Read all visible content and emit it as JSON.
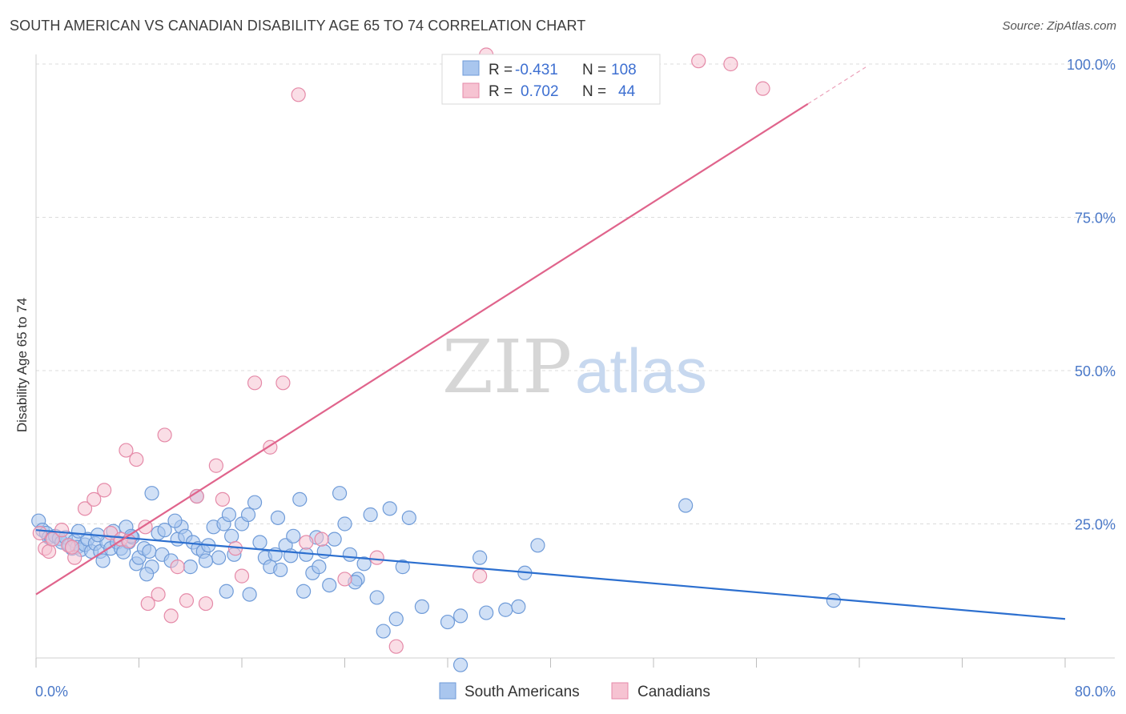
{
  "title": "SOUTH AMERICAN VS CANADIAN DISABILITY AGE 65 TO 74 CORRELATION CHART",
  "source": "Source: ZipAtlas.com",
  "watermark": {
    "zip": "ZIP",
    "atlas": "atlas"
  },
  "legend": {
    "rows": [
      {
        "r_label": "R = ",
        "r_value": "-0.431",
        "n_label": "N = ",
        "n_value": "108"
      },
      {
        "r_label": "R = ",
        "r_value": "0.702",
        "n_label": "N = ",
        "n_value": "44"
      }
    ]
  },
  "colors": {
    "blue_fill": "#a9c6ee",
    "blue_stroke": "#6f9bd8",
    "blue_line": "#2c6fcf",
    "pink_fill": "#f6c3d2",
    "pink_stroke": "#e58aa8",
    "pink_line": "#e0648c",
    "tick_text": "#4a78c8",
    "grid": "#dcdcdc"
  },
  "chart_data": {
    "type": "scatter",
    "title": "SOUTH AMERICAN VS CANADIAN DISABILITY AGE 65 TO 74 CORRELATION CHART",
    "xlabel": "",
    "ylabel": "Disability Age 65 to 74",
    "xlim": [
      0,
      80
    ],
    "ylim": [
      0,
      100
    ],
    "x_tick_labels": [
      "0.0%",
      "80.0%"
    ],
    "y_tick_labels": [
      "25.0%",
      "50.0%",
      "75.0%",
      "100.0%"
    ],
    "y_ticks": [
      25,
      50,
      75,
      100
    ],
    "grid": true,
    "legend_position": "top-center",
    "series": [
      {
        "name": "South Americans",
        "points": [
          [
            0.2,
            25.5
          ],
          [
            0.5,
            24.0
          ],
          [
            0.8,
            23.5
          ],
          [
            1.0,
            22.8
          ],
          [
            1.2,
            22.5
          ],
          [
            1.5,
            23.0
          ],
          [
            1.8,
            22.6
          ],
          [
            2.0,
            22.0
          ],
          [
            2.3,
            22.8
          ],
          [
            2.6,
            21.5
          ],
          [
            2.8,
            21.0
          ],
          [
            3.0,
            22.2
          ],
          [
            3.2,
            21.2
          ],
          [
            3.5,
            20.8
          ],
          [
            3.8,
            21.6
          ],
          [
            4.0,
            22.5
          ],
          [
            4.3,
            20.5
          ],
          [
            4.6,
            21.8
          ],
          [
            5.0,
            20.5
          ],
          [
            5.2,
            19.0
          ],
          [
            5.5,
            22.0
          ],
          [
            5.8,
            21.0
          ],
          [
            6.0,
            23.8
          ],
          [
            6.3,
            22.0
          ],
          [
            6.6,
            21.0
          ],
          [
            7.0,
            24.5
          ],
          [
            7.2,
            22.0
          ],
          [
            7.5,
            22.8
          ],
          [
            7.8,
            18.5
          ],
          [
            8.0,
            19.5
          ],
          [
            8.4,
            21.0
          ],
          [
            8.8,
            20.5
          ],
          [
            9.0,
            18.0
          ],
          [
            9.5,
            23.5
          ],
          [
            9.8,
            20.0
          ],
          [
            10.0,
            24.0
          ],
          [
            10.5,
            19.0
          ],
          [
            11.0,
            22.5
          ],
          [
            11.3,
            24.5
          ],
          [
            11.6,
            23.0
          ],
          [
            12.0,
            18.0
          ],
          [
            12.2,
            22.0
          ],
          [
            12.6,
            21.0
          ],
          [
            13.0,
            20.5
          ],
          [
            13.4,
            21.5
          ],
          [
            13.8,
            24.5
          ],
          [
            14.2,
            19.5
          ],
          [
            14.6,
            25.0
          ],
          [
            15.0,
            26.5
          ],
          [
            15.4,
            20.0
          ],
          [
            16.0,
            25.0
          ],
          [
            16.5,
            26.5
          ],
          [
            17.0,
            28.5
          ],
          [
            17.4,
            22.0
          ],
          [
            17.8,
            19.5
          ],
          [
            18.2,
            18.0
          ],
          [
            18.6,
            20.0
          ],
          [
            19.0,
            17.5
          ],
          [
            19.4,
            21.5
          ],
          [
            20.0,
            23.0
          ],
          [
            20.5,
            29.0
          ],
          [
            21.0,
            20.0
          ],
          [
            21.5,
            17.0
          ],
          [
            22.0,
            18.0
          ],
          [
            22.4,
            20.5
          ],
          [
            22.8,
            15.0
          ],
          [
            23.2,
            22.5
          ],
          [
            23.6,
            30.0
          ],
          [
            24.0,
            25.0
          ],
          [
            24.4,
            20.0
          ],
          [
            25.0,
            16.0
          ],
          [
            25.5,
            18.5
          ],
          [
            26.0,
            26.5
          ],
          [
            27.0,
            7.5
          ],
          [
            28.0,
            9.5
          ],
          [
            28.5,
            18.0
          ],
          [
            29.0,
            26.0
          ],
          [
            30.0,
            11.5
          ],
          [
            32.0,
            9.0
          ],
          [
            33.0,
            10.0
          ],
          [
            34.5,
            19.5
          ],
          [
            35.0,
            10.5
          ],
          [
            36.5,
            11.0
          ],
          [
            37.5,
            11.5
          ],
          [
            38.0,
            17.0
          ],
          [
            39.0,
            21.5
          ],
          [
            50.5,
            28.0
          ],
          [
            62.0,
            12.5
          ],
          [
            9.0,
            30.0
          ],
          [
            12.5,
            29.5
          ],
          [
            18.8,
            26.0
          ],
          [
            15.2,
            23.0
          ],
          [
            10.8,
            25.5
          ],
          [
            7.4,
            23.0
          ],
          [
            20.8,
            14.0
          ],
          [
            24.8,
            15.5
          ],
          [
            33.0,
            2.0
          ],
          [
            26.5,
            13.0
          ],
          [
            13.2,
            19.0
          ],
          [
            16.6,
            13.5
          ],
          [
            14.8,
            14.0
          ],
          [
            4.8,
            23.2
          ],
          [
            6.8,
            20.4
          ],
          [
            3.3,
            23.8
          ],
          [
            19.8,
            19.8
          ],
          [
            21.8,
            22.8
          ],
          [
            27.5,
            27.5
          ],
          [
            8.6,
            16.8
          ]
        ]
      },
      {
        "name": "Canadians",
        "points": [
          [
            0.3,
            23.5
          ],
          [
            0.7,
            21.0
          ],
          [
            1.0,
            20.5
          ],
          [
            1.3,
            22.5
          ],
          [
            2.0,
            24.0
          ],
          [
            2.5,
            21.5
          ],
          [
            3.0,
            19.5
          ],
          [
            3.8,
            27.5
          ],
          [
            4.5,
            29.0
          ],
          [
            5.3,
            30.5
          ],
          [
            5.8,
            23.5
          ],
          [
            6.6,
            22.5
          ],
          [
            7.0,
            37.0
          ],
          [
            7.8,
            35.5
          ],
          [
            8.5,
            24.5
          ],
          [
            8.7,
            12.0
          ],
          [
            9.5,
            13.5
          ],
          [
            10.0,
            39.5
          ],
          [
            10.5,
            10.0
          ],
          [
            11.0,
            18.0
          ],
          [
            11.7,
            12.5
          ],
          [
            12.5,
            29.5
          ],
          [
            13.2,
            12.0
          ],
          [
            14.0,
            34.5
          ],
          [
            14.5,
            29.0
          ],
          [
            15.5,
            21.0
          ],
          [
            16.0,
            16.5
          ],
          [
            17.0,
            48.0
          ],
          [
            18.2,
            37.5
          ],
          [
            19.2,
            48.0
          ],
          [
            20.4,
            95.0
          ],
          [
            21.0,
            22.0
          ],
          [
            22.2,
            22.5
          ],
          [
            24.0,
            16.0
          ],
          [
            26.5,
            19.5
          ],
          [
            28.0,
            5.0
          ],
          [
            34.5,
            16.5
          ],
          [
            35.0,
            101.5
          ],
          [
            36.0,
            100.0
          ],
          [
            51.5,
            100.5
          ],
          [
            54.0,
            100.0
          ],
          [
            56.5,
            96.0
          ],
          [
            2.8,
            21.2
          ],
          [
            7.2,
            22.2
          ]
        ]
      }
    ],
    "trend_lines": [
      {
        "series": "South Americans",
        "x": [
          0,
          80
        ],
        "y": [
          24.0,
          9.5
        ]
      },
      {
        "series": "Canadians",
        "x": [
          0,
          60
        ],
        "y": [
          13.5,
          93.5
        ]
      }
    ]
  },
  "bottom_legend": [
    "South Americans",
    "Canadians"
  ]
}
